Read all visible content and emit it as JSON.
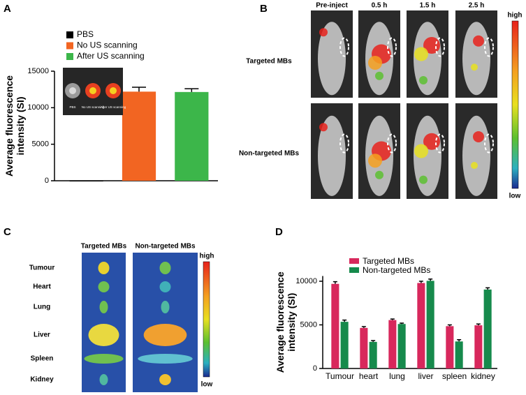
{
  "chart_data": [
    {
      "type": "bar",
      "panel": "A",
      "ylabel": [
        "Average fluorescence",
        "intensity (SI)"
      ],
      "categories": [
        null,
        null,
        null
      ],
      "values": [
        50,
        12200,
        12150
      ],
      "errors": [
        0,
        600,
        450
      ],
      "colors": [
        "#000000",
        "#f26522",
        "#3cb64a"
      ],
      "legend": [
        "PBS",
        "No US scanning",
        "After US scanning"
      ],
      "inset_labels": [
        "PBS",
        "No US scanning",
        "After US scanning"
      ],
      "ylim": [
        0,
        15000
      ],
      "yticks": [
        0,
        5000,
        10000,
        15000
      ]
    },
    {
      "type": "bar",
      "panel": "D",
      "ylabel": [
        "Average fluorescence",
        "intensity (SI)"
      ],
      "categories": [
        "Tumour",
        "heart",
        "lung",
        "liver",
        "spleen",
        "kidney"
      ],
      "series": [
        {
          "name": "Targeted MBs",
          "color": "#d8285c",
          "values": [
            9700,
            4650,
            5550,
            9800,
            4850,
            4950
          ],
          "errors": [
            250,
            150,
            120,
            200,
            150,
            150
          ]
        },
        {
          "name": "Non-targeted MBs",
          "color": "#168a4c",
          "values": [
            5350,
            3050,
            5100,
            10050,
            3100,
            9050
          ],
          "errors": [
            200,
            150,
            100,
            200,
            200,
            200
          ]
        }
      ],
      "ylim": [
        0,
        10600
      ],
      "yticks": [
        0,
        5000,
        10000
      ]
    }
  ],
  "figure": {
    "panel_B": {
      "panel": "B",
      "columns": [
        "Pre-inject",
        "0.5 h",
        "1.5 h",
        "2.5 h"
      ],
      "rows": [
        "Targeted MBs",
        "Non-targeted MBs"
      ],
      "scale": [
        "high",
        "low"
      ]
    },
    "panel_C": {
      "panel": "C",
      "columns": [
        "Targeted MBs",
        "Non-targeted MBs"
      ],
      "rows": [
        "Tumour",
        "Heart",
        "Lung",
        "Liver",
        "Spleen",
        "Kidney"
      ],
      "scale": [
        "high",
        "low"
      ]
    }
  }
}
